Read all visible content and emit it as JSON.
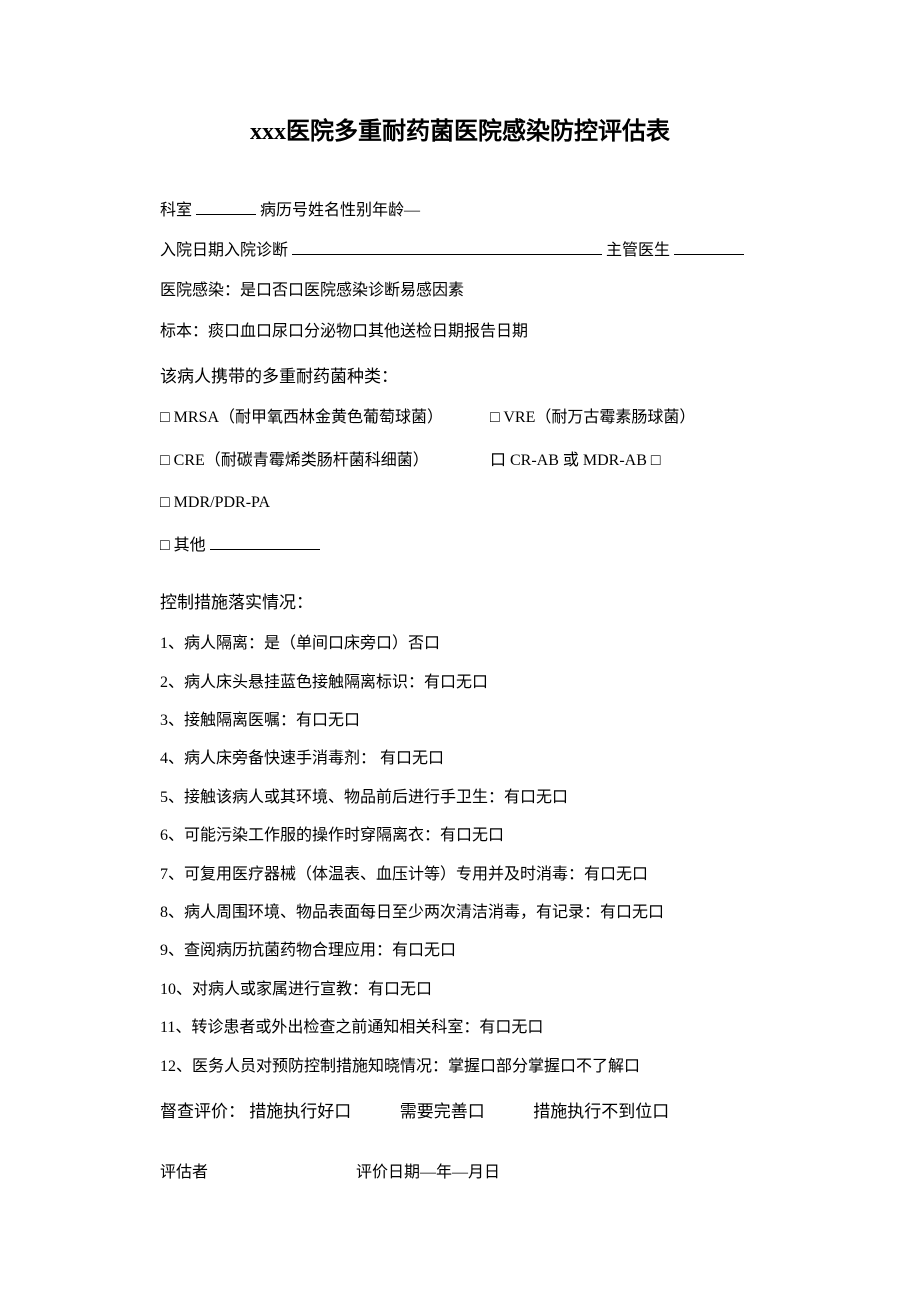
{
  "title": "xxx医院多重耐药菌医院感染防控评估表",
  "fields": {
    "department_label": "科室",
    "record_info": "病历号姓名性别年龄—",
    "admission_date_label": "入院日期入院诊断",
    "doctor_label": "主管医生",
    "hospital_infection": "医院感染：是口否口医院感染诊断易感因素",
    "specimen": "标本：痰口血口尿口分泌物口其他送检日期报告日期"
  },
  "bacteria_section": {
    "header": "该病人携带的多重耐药菌种类：",
    "left": [
      "□  MRSA（耐甲氧西林金黄色葡萄球菌）",
      "□  CRE（耐碳青霉烯类肠杆菌科细菌）",
      "□  MDR/PDR-PA",
      "□  其他"
    ],
    "right": [
      "□ VRE（耐万古霉素肠球菌）",
      "口  CR-AB 或  MDR-AB □"
    ]
  },
  "control_section": {
    "header": "控制措施落实情况：",
    "items": [
      "1、病人隔离：是（单间口床旁口）否口",
      "2、病人床头悬挂蓝色接触隔离标识：有口无口",
      "3、接触隔离医嘱：有口无口",
      "4、病人床旁备快速手消毒剂：   有口无口",
      "5、接触该病人或其环境、物品前后进行手卫生：有口无口",
      "6、可能污染工作服的操作时穿隔离衣：有口无口",
      "7、可复用医疗器械（体温表、血压计等）专用并及时消毒：有口无口",
      "8、病人周围环境、物品表面每日至少两次清洁消毒，有记录：有口无口",
      "9、查阅病历抗菌药物合理应用：有口无口",
      "10、对病人或家属进行宣教：有口无口",
      "11、转诊患者或外出检查之前通知相关科室：有口无口",
      "12、医务人员对预防控制措施知晓情况：掌握口部分掌握口不了解口"
    ]
  },
  "evaluation": {
    "label": "督查评价：",
    "options": [
      "措施执行好口",
      "需要完善口",
      "措施执行不到位口"
    ]
  },
  "signature": {
    "evaluator_label": "评估者",
    "date_label": "评价日期—年—月日"
  },
  "colors": {
    "text": "#000000",
    "background": "#ffffff"
  },
  "typography": {
    "title_fontsize": 24,
    "body_fontsize": 16,
    "section_fontsize": 17,
    "font_family": "SimSun"
  }
}
